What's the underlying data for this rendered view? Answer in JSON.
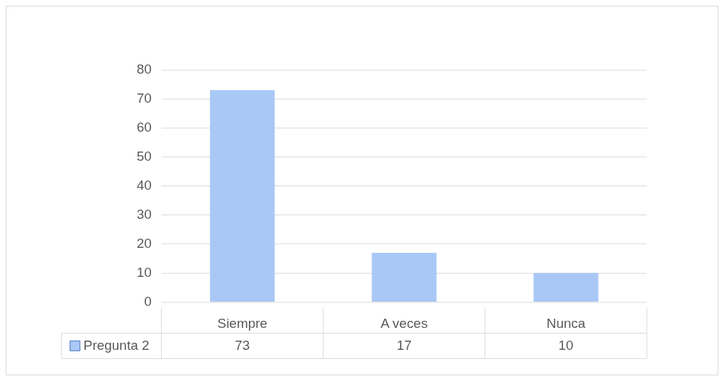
{
  "chart_data": {
    "type": "bar",
    "categories": [
      "Siempre",
      "A veces",
      "Nunca"
    ],
    "series": [
      {
        "name": "Pregunta 2",
        "color": "#a9c8f5",
        "values": [
          73,
          17,
          10
        ]
      }
    ],
    "ylim": [
      0,
      80
    ],
    "yticks": [
      0,
      10,
      20,
      30,
      40,
      50,
      60,
      70,
      80
    ],
    "grid": "y",
    "legend": "bottom left",
    "data_labels": true
  }
}
